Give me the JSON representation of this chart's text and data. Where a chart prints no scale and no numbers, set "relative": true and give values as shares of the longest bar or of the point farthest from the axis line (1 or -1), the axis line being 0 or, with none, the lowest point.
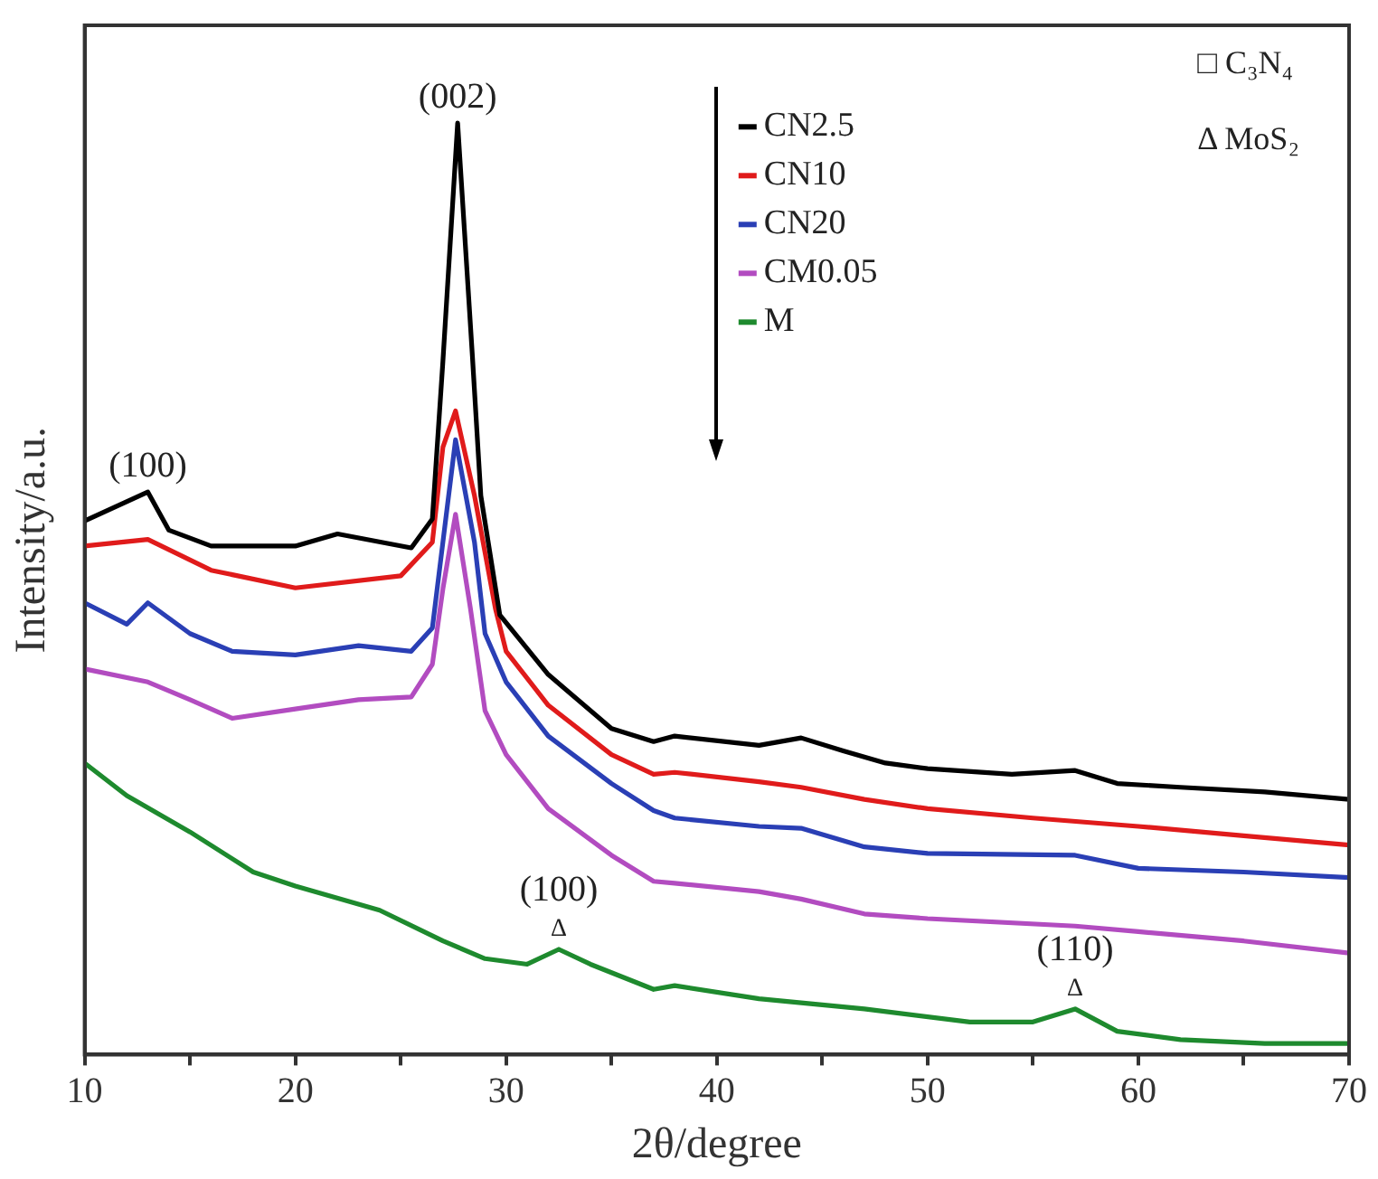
{
  "chart_data": {
    "type": "line",
    "relative": true,
    "xlabel": "2θ/degree",
    "ylabel": "Intensity/a.u.",
    "xlim": [
      10,
      70
    ],
    "xticks": [
      10,
      {
        "value": 15,
        "label": null
      },
      20,
      {
        "value": 25,
        "label": null
      },
      30,
      {
        "value": 35,
        "label": null
      },
      40,
      {
        "value": 45,
        "label": null
      },
      50,
      {
        "value": 55,
        "label": null
      },
      60,
      {
        "value": 65,
        "label": null
      },
      70
    ],
    "grid": false,
    "legend": "top",
    "marker": "none",
    "line_style": "solid",
    "series": [
      {
        "name": "CN2.5",
        "color": "#000000",
        "x": [
          10,
          13,
          14,
          16,
          20,
          22,
          25.5,
          26.5,
          27,
          27.7,
          28.4,
          28.8,
          29.7,
          32,
          35,
          37,
          38,
          42,
          44,
          46,
          48,
          50,
          54,
          57,
          59,
          62,
          66,
          70
        ],
        "values": [
          0.573,
          0.604,
          0.563,
          0.546,
          0.546,
          0.559,
          0.544,
          0.575,
          0.744,
          1.0,
          0.75,
          0.6,
          0.472,
          0.408,
          0.35,
          0.336,
          0.342,
          0.332,
          0.34,
          0.326,
          0.313,
          0.307,
          0.301,
          0.305,
          0.291,
          0.287,
          0.282,
          0.274
        ]
      },
      {
        "name": "CN10",
        "color": "#e01b1b",
        "x": [
          10,
          13,
          16,
          20,
          25,
          26.5,
          27,
          27.6,
          28.5,
          29.5,
          30,
          32,
          35,
          37,
          38,
          42,
          44,
          47,
          50,
          55,
          60,
          65,
          70
        ],
        "values": [
          0.546,
          0.553,
          0.52,
          0.501,
          0.514,
          0.55,
          0.652,
          0.691,
          0.6,
          0.478,
          0.433,
          0.375,
          0.322,
          0.301,
          0.303,
          0.293,
          0.287,
          0.274,
          0.264,
          0.254,
          0.245,
          0.235,
          0.225
        ]
      },
      {
        "name": "CN20",
        "color": "#2a3fb5",
        "x": [
          10,
          12,
          13,
          15,
          17,
          20,
          23,
          25.5,
          26.5,
          27,
          27.6,
          28.5,
          29,
          30,
          32,
          35,
          37,
          38,
          42,
          44,
          47,
          50,
          57,
          60,
          65,
          70
        ],
        "values": [
          0.485,
          0.462,
          0.485,
          0.452,
          0.433,
          0.429,
          0.439,
          0.433,
          0.458,
          0.55,
          0.66,
          0.55,
          0.452,
          0.4,
          0.342,
          0.291,
          0.262,
          0.254,
          0.245,
          0.243,
          0.223,
          0.216,
          0.214,
          0.2,
          0.196,
          0.19
        ]
      },
      {
        "name": "CM0.05",
        "color": "#b24cc0",
        "x": [
          10,
          13,
          15,
          17,
          20,
          23,
          25.5,
          26.5,
          27,
          27.6,
          28.3,
          29,
          30,
          32,
          35,
          37,
          38,
          42,
          44,
          47,
          50,
          57,
          60,
          65,
          70
        ],
        "values": [
          0.414,
          0.4,
          0.381,
          0.361,
          0.371,
          0.381,
          0.384,
          0.419,
          0.5,
          0.58,
          0.48,
          0.369,
          0.322,
          0.264,
          0.214,
          0.186,
          0.184,
          0.175,
          0.167,
          0.151,
          0.146,
          0.138,
          0.132,
          0.122,
          0.109
        ]
      },
      {
        "name": "M",
        "color": "#1e8a2e",
        "x": [
          10,
          12,
          15,
          18,
          20,
          24,
          27,
          29,
          31,
          32.5,
          34,
          37,
          38,
          42,
          47,
          52,
          55,
          57,
          59,
          62,
          66,
          70
        ],
        "values": [
          0.313,
          0.278,
          0.239,
          0.196,
          0.181,
          0.155,
          0.122,
          0.103,
          0.097,
          0.113,
          0.097,
          0.07,
          0.074,
          0.06,
          0.049,
          0.035,
          0.035,
          0.049,
          0.025,
          0.016,
          0.012,
          0.012
        ]
      }
    ],
    "annotations": [
      {
        "text": "(002)",
        "x": 27.7,
        "y": 1.0
      },
      {
        "text": "(100)",
        "x": 13,
        "y": 0.604
      },
      {
        "text": "(100)\nΔ",
        "x": 32.5,
        "y": 0.113
      },
      {
        "text": "(110)\nΔ",
        "x": 57,
        "y": 0.049
      },
      "□ C₃N₄",
      "Δ MoS₂"
    ]
  }
}
